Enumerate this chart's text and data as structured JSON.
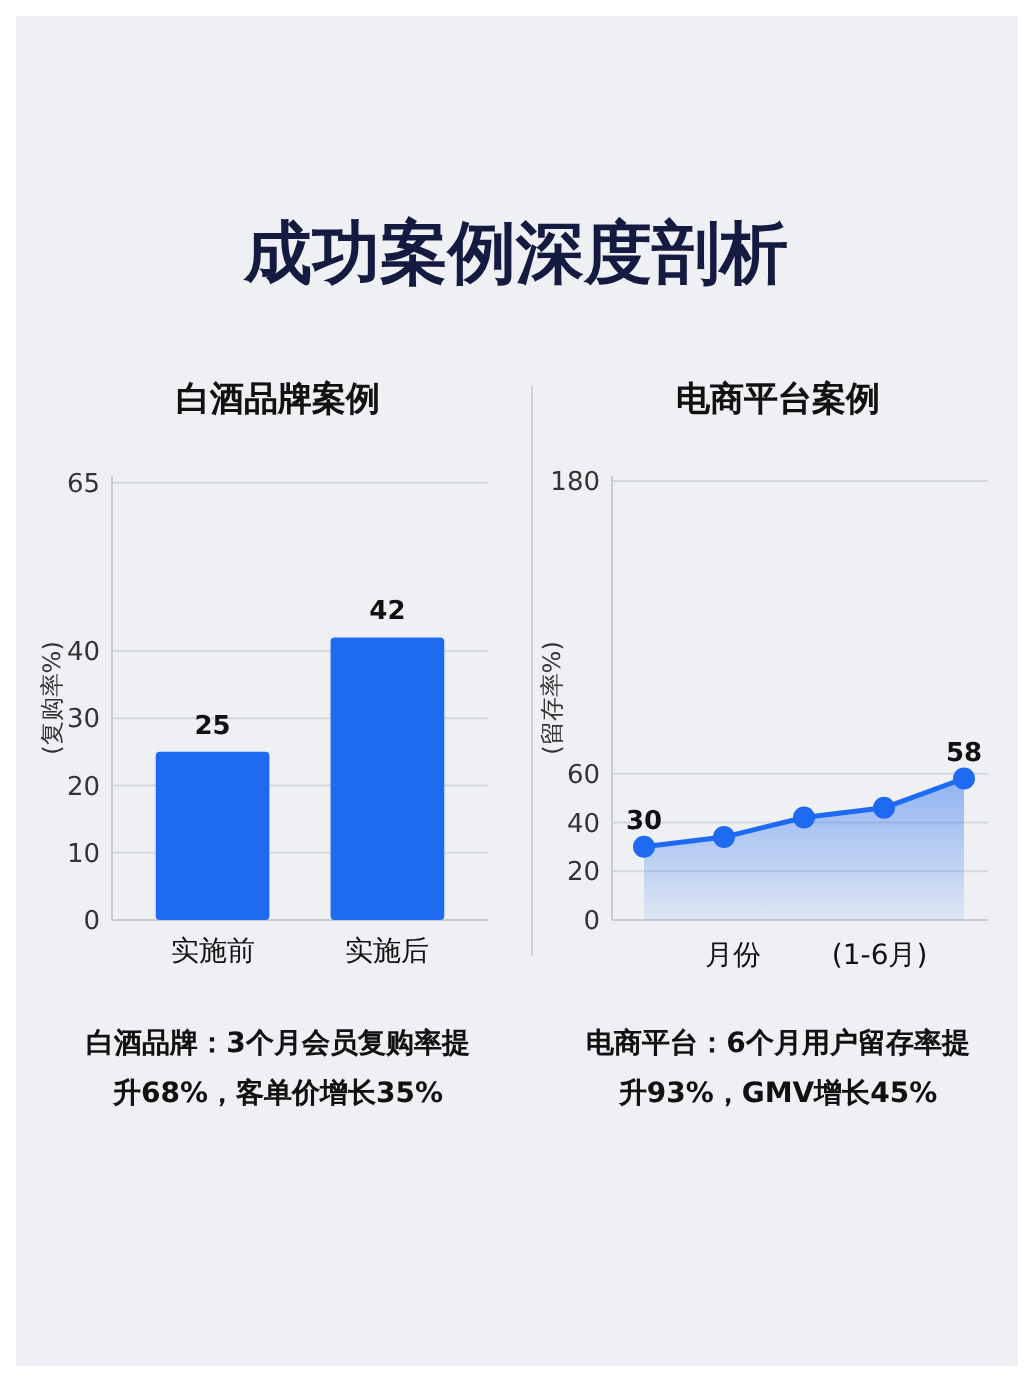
{
  "chart_data": [
    {
      "type": "bar",
      "title": "成功案例深度剖析",
      "subtitle": "白酒品牌案例",
      "ylabel": "(复购率%)",
      "categories": [
        "实施前",
        "实施后"
      ],
      "values": [
        25,
        42
      ],
      "color": "#1e6af0",
      "ylim": [
        0,
        66
      ],
      "yticks": [
        0,
        10,
        20,
        30,
        40,
        65
      ],
      "grid": "y",
      "data_labels": true,
      "annotations": [
        "白酒品牌：3个月会员复购率提升68%，客单价增长35%"
      ]
    },
    {
      "type": "area",
      "subtitle": "电商平台案例",
      "ylabel": "(留存率%)",
      "xlabel": "月份        (1-6月)",
      "categories": [
        null,
        null,
        null,
        null,
        null
      ],
      "values": [
        30,
        34,
        42,
        46,
        58
      ],
      "color": "#1e6af0",
      "ylim": [
        0,
        182
      ],
      "yticks": [
        0,
        20,
        40,
        60,
        180
      ],
      "grid": "y",
      "marker": "circle",
      "value_labels": [
        "30",
        null,
        null,
        null,
        "58"
      ],
      "annotations": [
        "电商平台：6个月用户留存率提升93%，GMV增长45%"
      ]
    }
  ]
}
